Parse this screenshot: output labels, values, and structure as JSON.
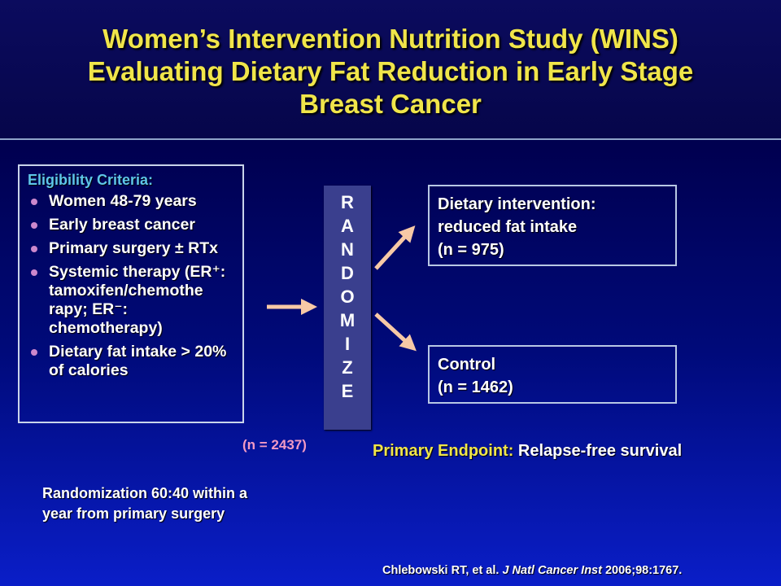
{
  "title": {
    "lines": [
      "Women’s Intervention Nutrition Study (WINS)",
      "Evaluating Dietary Fat Reduction in Early Stage",
      "Breast Cancer"
    ]
  },
  "eligibility": {
    "heading": "Eligibility Criteria:",
    "items": [
      "Women 48-79 years",
      "Early breast cancer",
      "Primary surgery ± RTx",
      "Systemic therapy (ER⁺: tamoxifen/chemothe rapy; ER⁻: chemotherapy)",
      "Dietary fat intake > 20% of calories"
    ]
  },
  "randomize": {
    "letters": [
      "R",
      "A",
      "N",
      "D",
      "O",
      "M",
      "I",
      "Z",
      "E"
    ]
  },
  "arms": {
    "intervention": {
      "lines": [
        "Dietary intervention:",
        "reduced fat intake",
        "(n = 975)"
      ]
    },
    "control": {
      "lines": [
        "Control",
        "(n = 1462)"
      ]
    }
  },
  "total_n": "(n = 2437)",
  "endpoint": {
    "label": "Primary Endpoint:",
    "value": "Relapse-free survival"
  },
  "randomization_note": {
    "lines": [
      "Randomization 60:40 within a",
      "year from primary surgery"
    ]
  },
  "citation": {
    "authors": "Chlebowski RT, et al.",
    "journal": "J Natl Cancer Inst",
    "ref": "2006;98:1767."
  },
  "colors": {
    "title": "#f0e54a",
    "heading": "#5ec6e8",
    "arrow": "#f7c9a6",
    "total_n": "#f29ac4",
    "bullet": "#cc88cc"
  }
}
